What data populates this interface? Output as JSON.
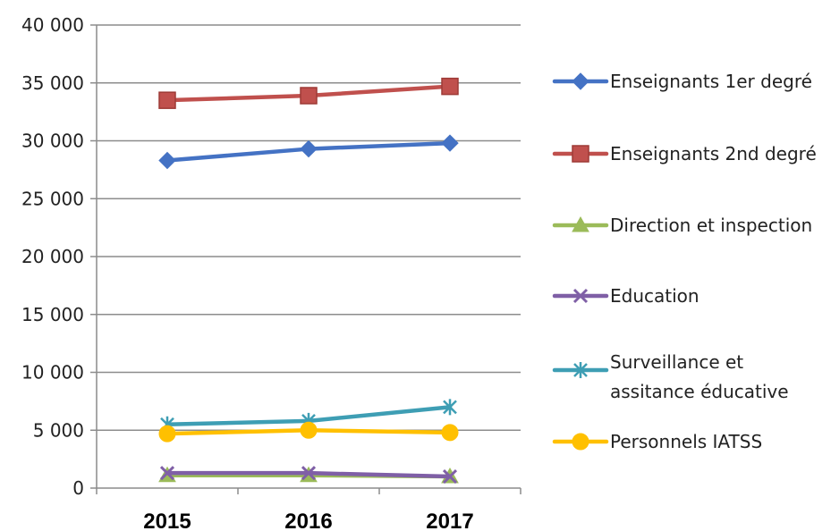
{
  "chart_data": {
    "type": "line",
    "categories": [
      "2015",
      "2016",
      "2017"
    ],
    "yticks": [
      "0",
      "5 000",
      "10 000",
      "15 000",
      "20 000",
      "25 000",
      "30 000",
      "35 000",
      "40 000"
    ],
    "ylim": [
      0,
      40000
    ],
    "grid": true,
    "legend_position": "right",
    "series": [
      {
        "name": "Enseignants 1er degré",
        "label_lines": [
          "Enseignants 1er degré"
        ],
        "values": [
          28300,
          29300,
          29800
        ],
        "color": "#4472C4",
        "marker": "diamond"
      },
      {
        "name": "Enseignants 2nd degré",
        "label_lines": [
          "Enseignants 2nd degré"
        ],
        "values": [
          33500,
          33900,
          34700
        ],
        "color": "#C0504D",
        "marker": "square"
      },
      {
        "name": "Direction et inspection",
        "label_lines": [
          "Direction et inspection"
        ],
        "values": [
          1100,
          1100,
          1000
        ],
        "color": "#9BBB59",
        "marker": "triangle"
      },
      {
        "name": "Education",
        "label_lines": [
          "Education"
        ],
        "values": [
          1300,
          1300,
          1000
        ],
        "color": "#7F5FA6",
        "marker": "x"
      },
      {
        "name": "Surveillance et assitance éducative",
        "label_lines": [
          "Surveillance et",
          "assitance éducative"
        ],
        "values": [
          5500,
          5800,
          7000
        ],
        "color": "#3E9EB4",
        "marker": "star"
      },
      {
        "name": "Personnels IATSS",
        "label_lines": [
          "Personnels IATSS"
        ],
        "values": [
          4700,
          5000,
          4800
        ],
        "color": "#FFC000",
        "marker": "circle"
      }
    ]
  }
}
